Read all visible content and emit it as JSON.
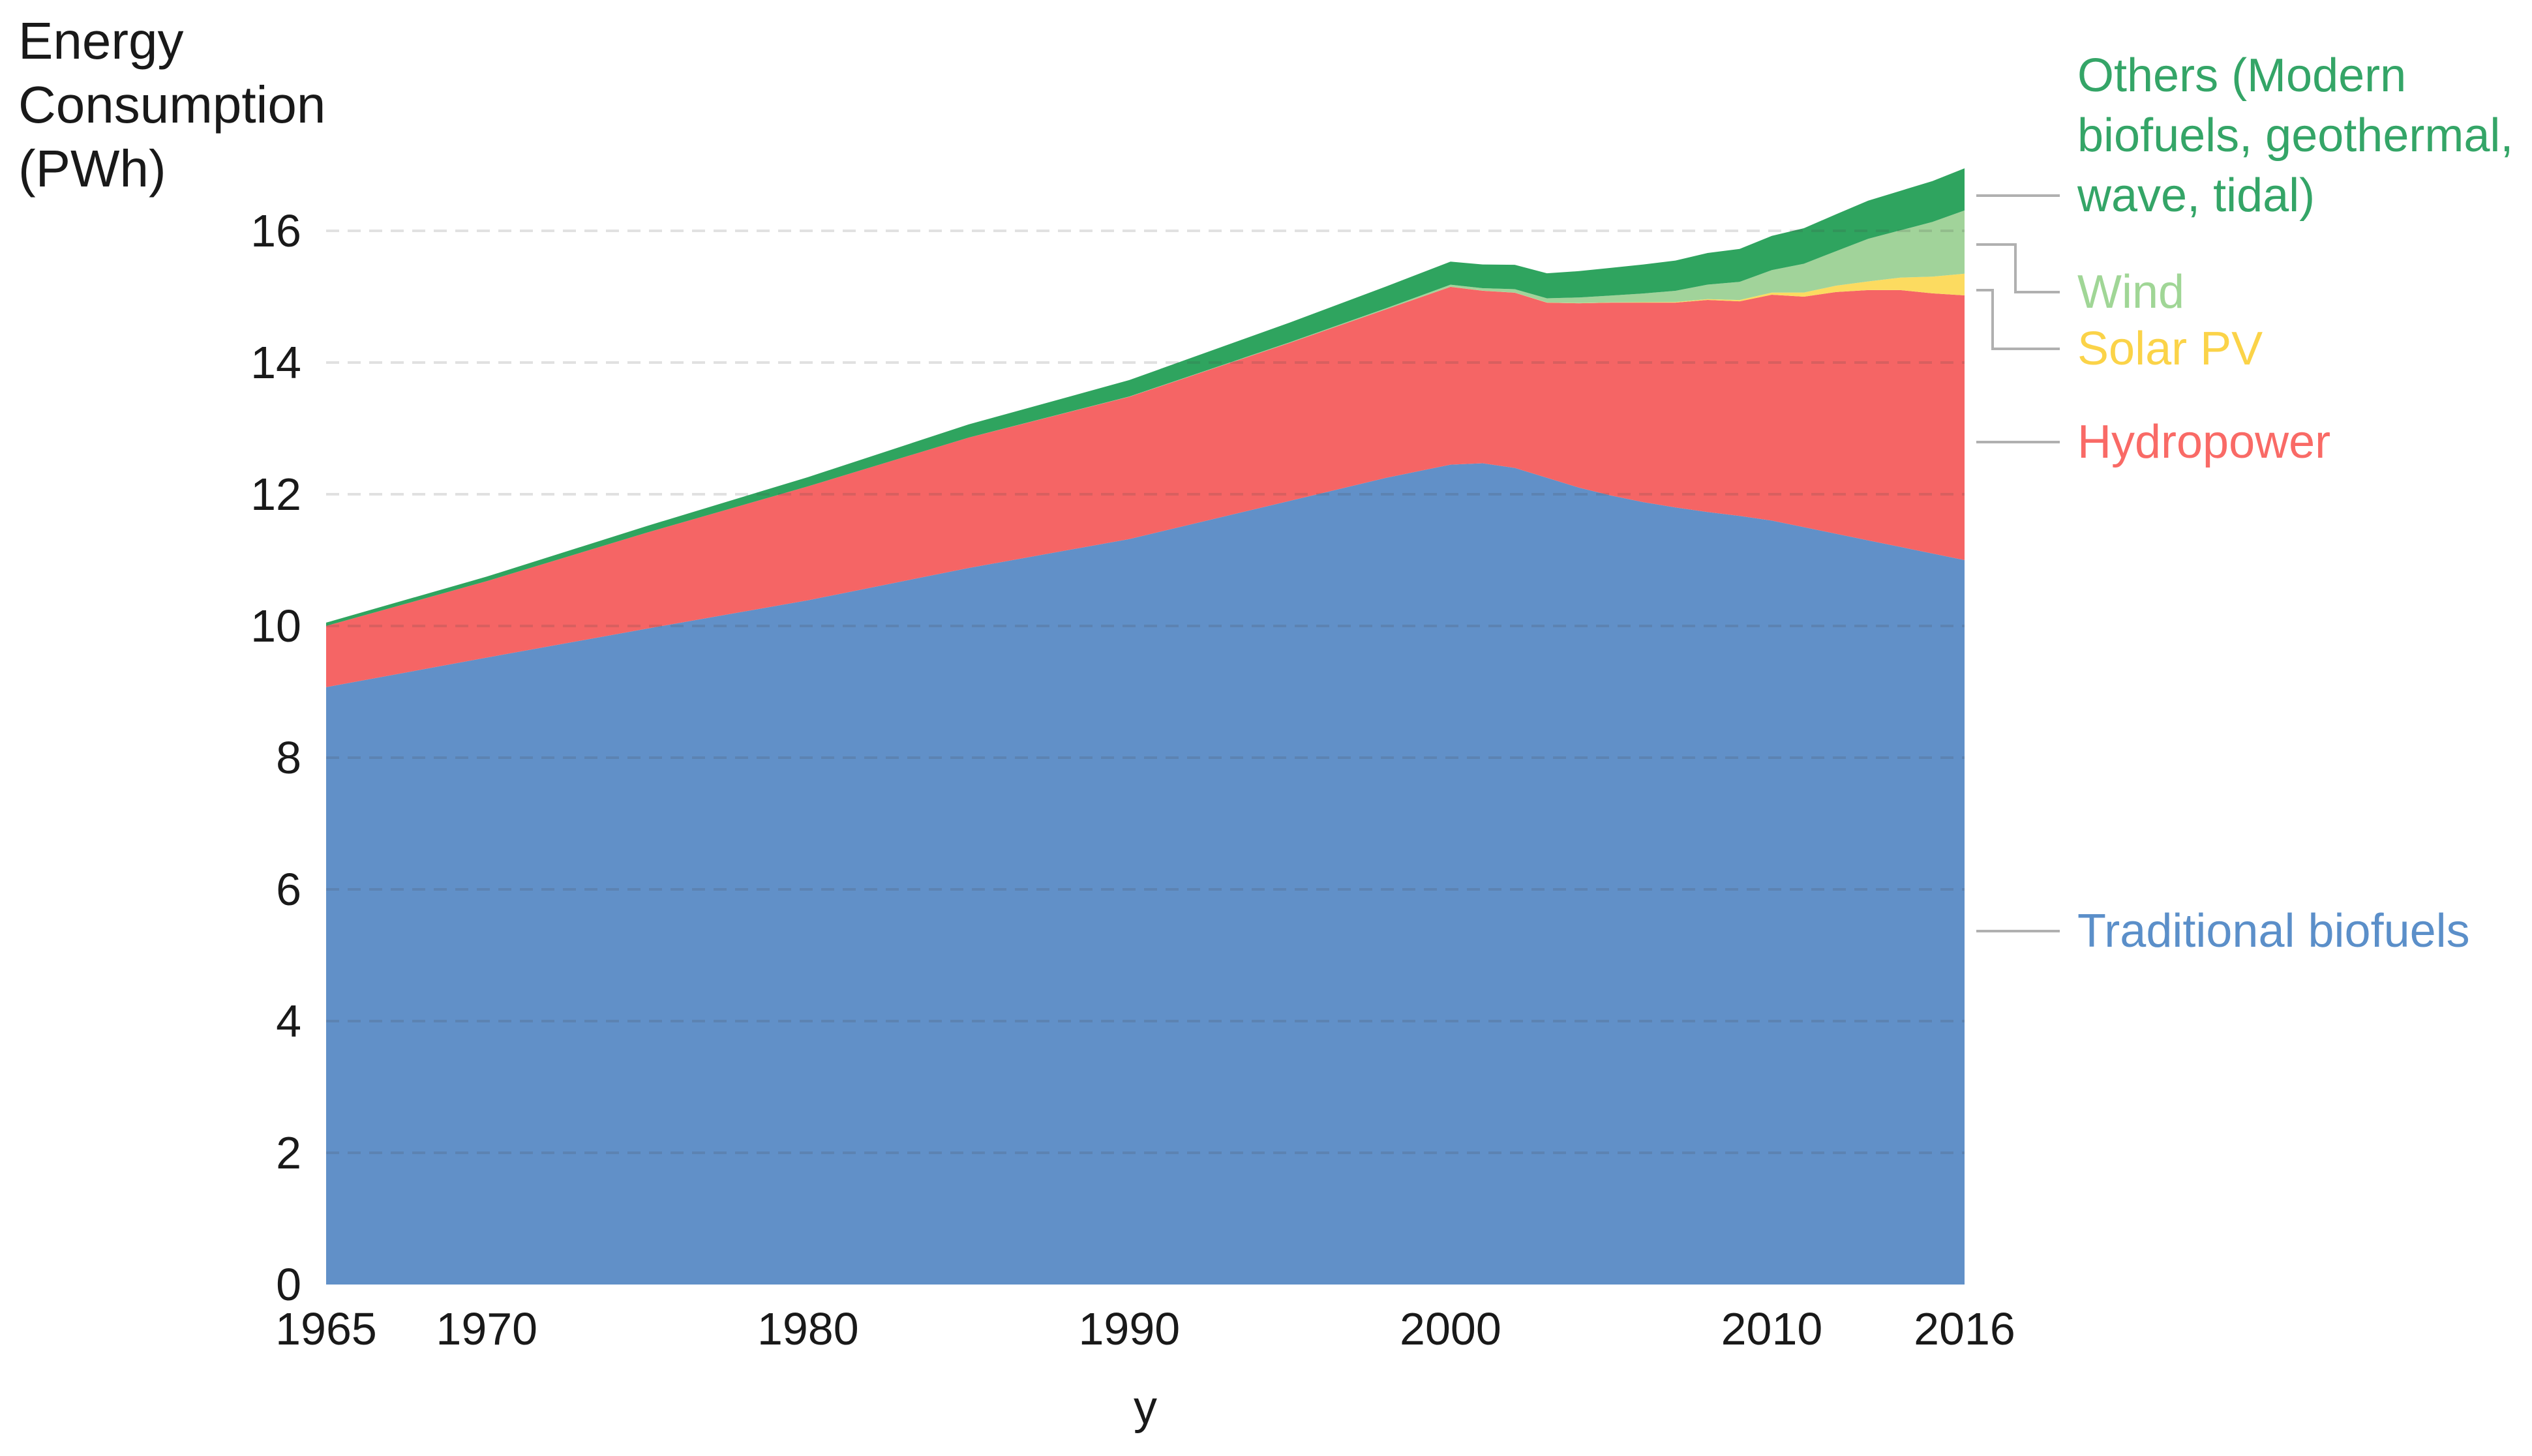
{
  "y_axis": {
    "title_lines": [
      "Energy",
      "Consumption",
      "(PWh)"
    ],
    "ticks": [
      0,
      2,
      4,
      6,
      8,
      10,
      12,
      14,
      16
    ]
  },
  "x_axis": {
    "title": "y",
    "ticks": [
      1965,
      1970,
      1980,
      1990,
      2000,
      2010,
      2016
    ],
    "range": [
      1965,
      2016
    ]
  },
  "legend": {
    "position": "right",
    "connector_color": "#b0b0b0",
    "entries": [
      {
        "id": "others",
        "color": "#34a567",
        "lines": [
          "Others (Modern",
          "biofuels, geothermal,",
          "wave, tidal)"
        ]
      },
      {
        "id": "wind",
        "color": "#a0d696",
        "lines": [
          "Wind"
        ]
      },
      {
        "id": "solar",
        "color": "#fbd348",
        "lines": [
          "Solar PV"
        ]
      },
      {
        "id": "hydropower",
        "color": "#f96a66",
        "lines": [
          "Hydropower"
        ]
      },
      {
        "id": "traditional-biofuels",
        "color": "#5b8fc9",
        "lines": [
          "Traditional biofuels"
        ]
      }
    ]
  },
  "grid": {
    "color": "rgba(70,70,70,0.16)",
    "dash": "20 13",
    "width": 4
  },
  "chart_data": {
    "type": "area",
    "stacked": true,
    "title": "",
    "xlabel": "y",
    "ylabel": "Energy Consumption (PWh)",
    "ylim": [
      0,
      17.2
    ],
    "yticks": [
      0,
      2,
      4,
      6,
      8,
      10,
      12,
      14,
      16
    ],
    "grid": true,
    "legend_position": "right",
    "x": [
      1965,
      1970,
      1975,
      1980,
      1985,
      1990,
      1995,
      1998,
      2000,
      2001,
      2002,
      2003,
      2004,
      2005,
      2006,
      2007,
      2008,
      2009,
      2010,
      2011,
      2012,
      2013,
      2014,
      2015,
      2016
    ],
    "series": [
      {
        "name": "Traditional biofuels",
        "color": "#6190c8",
        "values": [
          9.07,
          9.52,
          9.96,
          10.39,
          10.88,
          11.32,
          11.9,
          12.25,
          12.45,
          12.47,
          12.4,
          12.25,
          12.1,
          11.98,
          11.88,
          11.8,
          11.73,
          11.67,
          11.6,
          11.5,
          11.4,
          11.3,
          11.2,
          11.1,
          11.0
        ]
      },
      {
        "name": "Hydropower",
        "color": "#f56565",
        "values": [
          0.93,
          1.16,
          1.46,
          1.73,
          1.98,
          2.16,
          2.4,
          2.56,
          2.7,
          2.62,
          2.66,
          2.66,
          2.8,
          2.93,
          3.03,
          3.11,
          3.22,
          3.26,
          3.43,
          3.5,
          3.67,
          3.8,
          3.9,
          3.95,
          4.02
        ]
      },
      {
        "name": "Solar PV",
        "color": "#fcdb60",
        "values": [
          0,
          0,
          0,
          0,
          0,
          0,
          0,
          0,
          0.001,
          0.001,
          0.002,
          0.002,
          0.003,
          0.004,
          0.006,
          0.008,
          0.012,
          0.02,
          0.032,
          0.063,
          0.097,
          0.132,
          0.19,
          0.255,
          0.33
        ]
      },
      {
        "name": "Wind",
        "color": "#a1d39a",
        "values": [
          0,
          0,
          0,
          0,
          0,
          0.004,
          0.008,
          0.016,
          0.031,
          0.038,
          0.052,
          0.063,
          0.085,
          0.104,
          0.133,
          0.171,
          0.221,
          0.276,
          0.342,
          0.437,
          0.524,
          0.646,
          0.717,
          0.83,
          0.96
        ]
      },
      {
        "name": "Others (Modern biofuels, geothermal, wave, tidal)",
        "color": "#2fa45f",
        "values": [
          0.05,
          0.07,
          0.1,
          0.14,
          0.2,
          0.25,
          0.3,
          0.33,
          0.35,
          0.36,
          0.37,
          0.38,
          0.4,
          0.42,
          0.44,
          0.46,
          0.48,
          0.5,
          0.52,
          0.54,
          0.56,
          0.58,
          0.6,
          0.62,
          0.64
        ]
      }
    ]
  }
}
